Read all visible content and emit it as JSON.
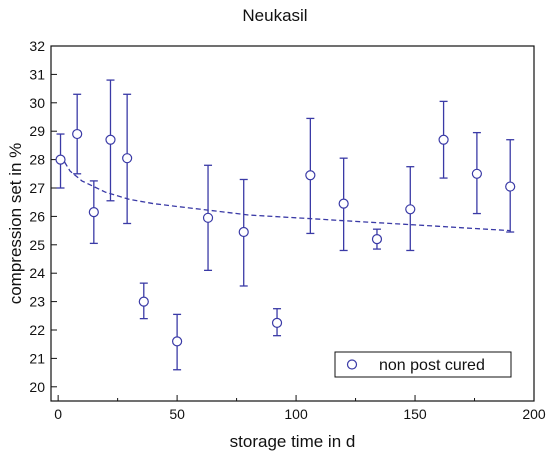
{
  "chart_data": {
    "type": "scatter",
    "title": "Neukasil",
    "xlabel": "storage time in d",
    "ylabel": "compression set in %",
    "xlim": [
      -3,
      200
    ],
    "ylim": [
      19.5,
      32
    ],
    "xticks": [
      0,
      50,
      100,
      150,
      200
    ],
    "yticks": [
      20,
      21,
      22,
      23,
      24,
      25,
      26,
      27,
      28,
      29,
      30,
      31,
      32
    ],
    "grid": false,
    "legend_position": "bottom-right",
    "colors": {
      "series": "#3a3aa6",
      "fit": "#3a3aa6",
      "axis": "#111111"
    },
    "series": [
      {
        "name": "non post cured",
        "marker": "open-circle",
        "points": [
          {
            "x": 1,
            "y": 28.0,
            "lo": 27.0,
            "hi": 28.9
          },
          {
            "x": 8,
            "y": 28.9,
            "lo": 27.5,
            "hi": 30.3
          },
          {
            "x": 15,
            "y": 26.15,
            "lo": 25.05,
            "hi": 27.25
          },
          {
            "x": 22,
            "y": 28.7,
            "lo": 26.55,
            "hi": 30.8
          },
          {
            "x": 29,
            "y": 28.05,
            "lo": 25.75,
            "hi": 30.3
          },
          {
            "x": 36,
            "y": 23.0,
            "lo": 22.4,
            "hi": 23.65
          },
          {
            "x": 50,
            "y": 21.6,
            "lo": 20.6,
            "hi": 22.55
          },
          {
            "x": 63,
            "y": 25.95,
            "lo": 24.1,
            "hi": 27.8
          },
          {
            "x": 78,
            "y": 25.45,
            "lo": 23.55,
            "hi": 27.3
          },
          {
            "x": 92,
            "y": 22.25,
            "lo": 21.8,
            "hi": 22.75
          },
          {
            "x": 106,
            "y": 27.45,
            "lo": 25.4,
            "hi": 29.45
          },
          {
            "x": 120,
            "y": 26.45,
            "lo": 24.8,
            "hi": 28.05
          },
          {
            "x": 134,
            "y": 25.2,
            "lo": 24.85,
            "hi": 25.55
          },
          {
            "x": 148,
            "y": 26.25,
            "lo": 24.8,
            "hi": 27.75
          },
          {
            "x": 162,
            "y": 28.7,
            "lo": 27.35,
            "hi": 30.05
          },
          {
            "x": 176,
            "y": 27.5,
            "lo": 26.1,
            "hi": 28.95
          },
          {
            "x": 190,
            "y": 27.05,
            "lo": 25.45,
            "hi": 28.7
          }
        ]
      }
    ],
    "fit_line": {
      "style": "dashed",
      "x": [
        1,
        5,
        10,
        20,
        30,
        40,
        50,
        60,
        70,
        80,
        90,
        100,
        110,
        120,
        130,
        140,
        150,
        160,
        170,
        180,
        190
      ],
      "y": [
        28.15,
        27.6,
        27.25,
        26.85,
        26.6,
        26.45,
        26.35,
        26.25,
        26.15,
        26.05,
        26.0,
        25.95,
        25.9,
        25.85,
        25.8,
        25.75,
        25.7,
        25.65,
        25.6,
        25.55,
        25.5
      ]
    }
  }
}
